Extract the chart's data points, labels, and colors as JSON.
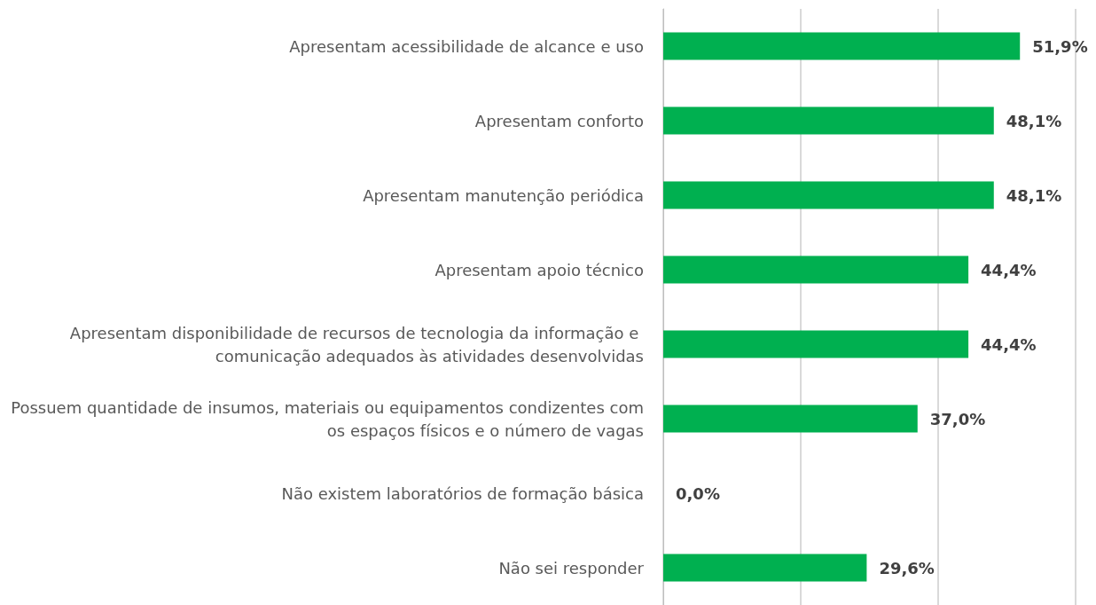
{
  "chart_data": {
    "type": "bar",
    "orientation": "horizontal",
    "categories": [
      "Apresentam acessibilidade de alcance e uso",
      "Apresentam conforto",
      "Apresentam manutenção periódica",
      "Apresentam apoio técnico",
      "Apresentam disponibilidade de recursos de tecnologia da informação e comunicação adequados às atividades desenvolvidas",
      "Possuem quantidade de insumos, materiais ou equipamentos condizentes com os espaços físicos e o número de vagas",
      "Não existem laboratórios de formação básica",
      "Não sei responder"
    ],
    "values": [
      51.9,
      48.1,
      48.1,
      44.4,
      44.4,
      37.0,
      0.0,
      29.6
    ],
    "value_labels": [
      "51,9%",
      "48,1%",
      "48,1%",
      "44,4%",
      "44,4%",
      "37,0%",
      "0,0%",
      "29,6%"
    ],
    "color": "#00b050",
    "xlim": [
      0,
      60
    ],
    "xticks": [
      {
        "value": 0,
        "label": null
      },
      {
        "value": 20,
        "label": null
      },
      {
        "value": 40,
        "label": null
      },
      {
        "value": 60,
        "label": null
      }
    ],
    "tick_labels": "y",
    "grid": "x"
  }
}
